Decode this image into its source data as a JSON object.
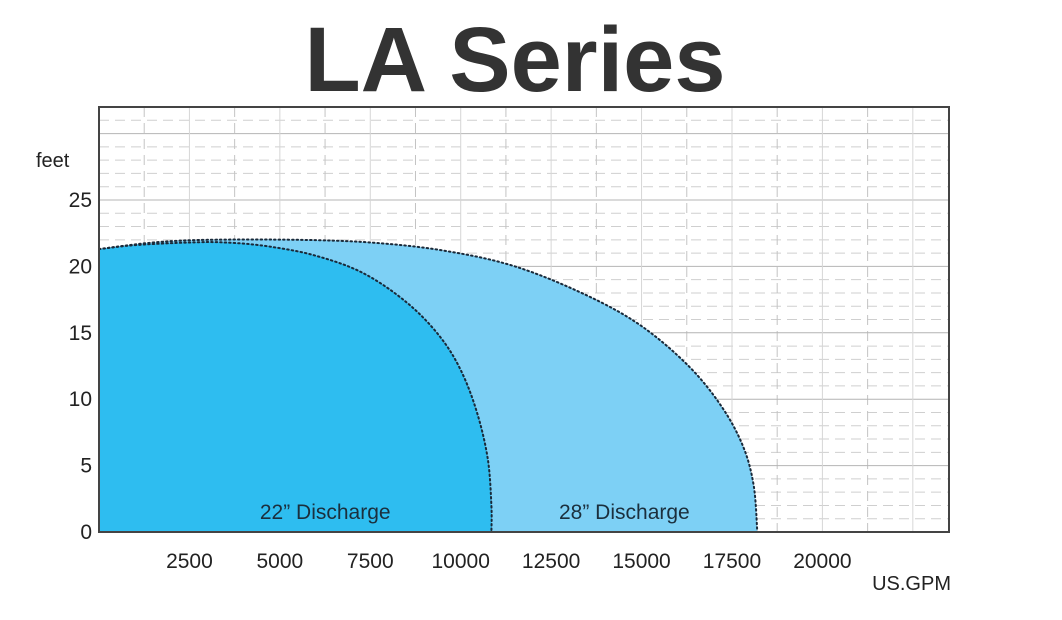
{
  "chart_data": {
    "type": "area",
    "title": "LA Series",
    "ylabel": "feet",
    "xlabel": "US.GPM",
    "xlim": [
      0,
      23500
    ],
    "ylim": [
      0,
      32
    ],
    "x_ticks": [
      2500,
      5000,
      7500,
      10000,
      12500,
      15000,
      17500,
      20000
    ],
    "x_tick_labels": [
      "2500",
      "5000",
      "7500",
      "10000",
      "12500",
      "15000",
      "17500",
      "20000"
    ],
    "y_ticks": [
      0,
      5,
      10,
      15,
      20,
      25
    ],
    "y_tick_labels": [
      "0",
      "5",
      "10",
      "15",
      "20",
      "25"
    ],
    "grid": true,
    "series": [
      {
        "name": "28” Discharge",
        "color": "#7dd0f5",
        "points": [
          [
            0,
            21.3
          ],
          [
            1500,
            21.8
          ],
          [
            3000,
            22.0
          ],
          [
            5500,
            22.0
          ],
          [
            7500,
            21.8
          ],
          [
            9500,
            21.2
          ],
          [
            11500,
            20.0
          ],
          [
            13500,
            17.8
          ],
          [
            15000,
            15.5
          ],
          [
            16300,
            12.5
          ],
          [
            17200,
            9.5
          ],
          [
            17800,
            6.5
          ],
          [
            18100,
            3.5
          ],
          [
            18200,
            0
          ]
        ]
      },
      {
        "name": "22” Discharge",
        "color": "#2ebdf0",
        "points": [
          [
            0,
            21.3
          ],
          [
            1000,
            21.6
          ],
          [
            2500,
            21.8
          ],
          [
            3500,
            21.8
          ],
          [
            4700,
            21.5
          ],
          [
            6000,
            20.8
          ],
          [
            7300,
            19.5
          ],
          [
            8500,
            17.3
          ],
          [
            9400,
            14.8
          ],
          [
            10000,
            12.2
          ],
          [
            10450,
            9.0
          ],
          [
            10750,
            5.5
          ],
          [
            10850,
            2.0
          ],
          [
            10850,
            0
          ]
        ]
      }
    ]
  }
}
